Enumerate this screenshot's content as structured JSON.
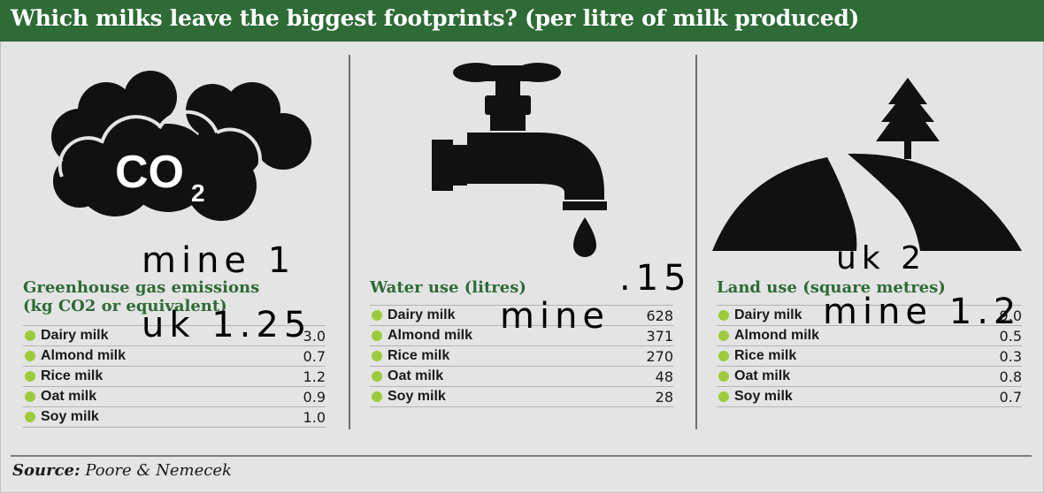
{
  "header": {
    "title": "Which milks leave the biggest footprints? (per litre of milk produced)"
  },
  "icons": {
    "co2_label": "CO",
    "co2_sub": "2"
  },
  "chart_data": [
    {
      "type": "table",
      "title": "Greenhouse gas emissions",
      "subtitle": "(kg CO2 or equivalent)",
      "categories": [
        "Dairy milk",
        "Almond milk",
        "Rice milk",
        "Oat milk",
        "Soy milk"
      ],
      "values": [
        "3.0",
        "0.7",
        "1.2",
        "0.9",
        "1.0"
      ],
      "icon": "co2-cloud-icon"
    },
    {
      "type": "table",
      "title": "Water use (litres)",
      "categories": [
        "Dairy milk",
        "Almond milk",
        "Rice milk",
        "Oat milk",
        "Soy milk"
      ],
      "values": [
        "628",
        "371",
        "270",
        "48",
        "28"
      ],
      "icon": "water-tap-icon"
    },
    {
      "type": "table",
      "title": "Land use (square metres)",
      "categories": [
        "Dairy milk",
        "Almond milk",
        "Rice milk",
        "Oat milk",
        "Soy milk"
      ],
      "values": [
        "9.0",
        "0.5",
        "0.3",
        "0.8",
        "0.7"
      ],
      "icon": "land-tree-icon"
    }
  ],
  "handwriting": {
    "ghg_mine": "mine 1",
    "ghg_uk": "uk 1.25",
    "water_mine": "mine",
    "water_val": ".15",
    "land_uk": "uk 2",
    "land_mine": "mine 1.2"
  },
  "footer": {
    "source_label": "Source:",
    "source_text": "Poore & Nemecek"
  },
  "colors": {
    "header_bg": "#2e6b36",
    "title_green": "#2e6b36",
    "bullet": "#9ccc3b",
    "background": "#e4e4e4"
  }
}
